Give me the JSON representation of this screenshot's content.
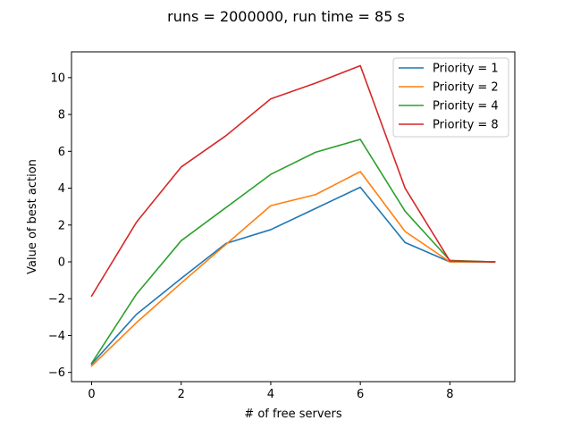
{
  "chart_data": {
    "type": "line",
    "title": "runs = 2000000, run time = 85 s",
    "xlabel": "# of free servers",
    "ylabel": "Value of best action",
    "x": [
      0,
      1,
      2,
      3,
      4,
      5,
      6,
      7,
      8,
      9
    ],
    "xlim": [
      -0.45,
      9.45
    ],
    "ylim": [
      -6.5,
      11.4
    ],
    "xticks": [
      0,
      2,
      4,
      6,
      8
    ],
    "yticks": [
      -6,
      -4,
      -2,
      0,
      2,
      4,
      6,
      8,
      10
    ],
    "xtick_labels": [
      "0",
      "2",
      "4",
      "6",
      "8"
    ],
    "ytick_labels": [
      "−6",
      "−4",
      "−2",
      "0",
      "2",
      "4",
      "6",
      "8",
      "10"
    ],
    "grid": false,
    "legend_position": "top-right",
    "series": [
      {
        "name": "Priority = 1",
        "color": "#1f77b4",
        "values": [
          -5.55,
          -2.85,
          -0.9,
          1.0,
          1.75,
          2.9,
          4.05,
          1.05,
          0.0,
          0.0
        ]
      },
      {
        "name": "Priority = 2",
        "color": "#ff7f0e",
        "values": [
          -5.65,
          -3.3,
          -1.15,
          0.95,
          3.05,
          3.65,
          4.9,
          1.65,
          0.0,
          0.0
        ]
      },
      {
        "name": "Priority = 4",
        "color": "#2ca02c",
        "values": [
          -5.5,
          -1.75,
          1.15,
          2.95,
          4.75,
          5.95,
          6.65,
          2.75,
          0.08,
          0.0
        ]
      },
      {
        "name": "Priority = 8",
        "color": "#d62728",
        "values": [
          -1.85,
          2.15,
          5.15,
          6.85,
          8.85,
          9.7,
          10.65,
          4.0,
          0.05,
          0.0
        ]
      }
    ]
  }
}
